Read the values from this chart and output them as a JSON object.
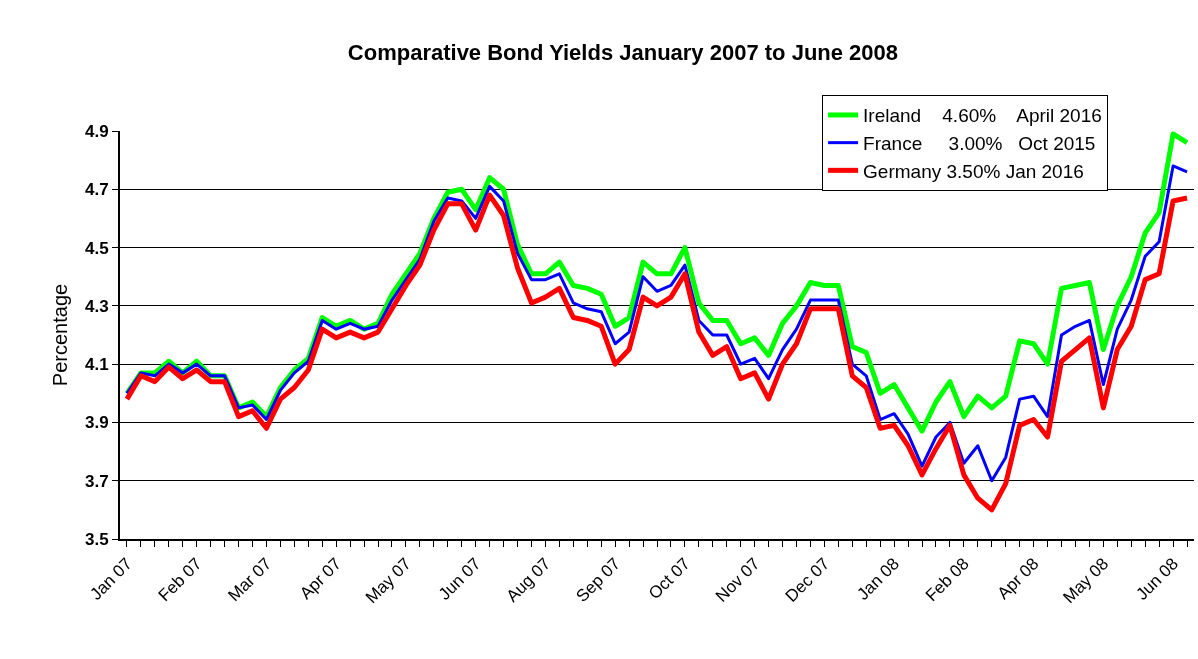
{
  "chart_data": {
    "type": "line",
    "title": "Comparative Bond Yields January 2007 to June 2008",
    "ylabel": "Percentage",
    "categories": [
      "Jan 07",
      null,
      null,
      null,
      null,
      "Feb 07",
      null,
      null,
      null,
      null,
      "Mar 07",
      null,
      null,
      null,
      null,
      "Apr 07",
      null,
      null,
      null,
      null,
      "May 07",
      null,
      null,
      null,
      null,
      "Jun 07",
      null,
      null,
      null,
      null,
      "Aug 07",
      null,
      null,
      null,
      null,
      "Sep 07",
      null,
      null,
      null,
      null,
      "Oct 07",
      null,
      null,
      null,
      null,
      "Nov 07",
      null,
      null,
      null,
      null,
      "Dec 07",
      null,
      null,
      null,
      null,
      "Jan 08",
      null,
      null,
      null,
      null,
      "Feb 08",
      null,
      null,
      null,
      null,
      "Apr 08",
      null,
      null,
      null,
      null,
      "May 08",
      null,
      null,
      null,
      null,
      "Jun 08",
      null
    ],
    "series": [
      {
        "name": "Ireland    4.60%    April 2016",
        "color": "#00ff00",
        "values": [
          4.0,
          4.07,
          4.07,
          4.11,
          4.07,
          4.11,
          4.06,
          4.06,
          3.95,
          3.97,
          3.92,
          4.02,
          4.08,
          4.12,
          4.26,
          4.23,
          4.25,
          4.22,
          4.24,
          4.34,
          4.41,
          4.48,
          4.6,
          4.69,
          4.7,
          4.63,
          4.74,
          4.7,
          4.51,
          4.41,
          4.41,
          4.45,
          4.37,
          4.36,
          4.34,
          4.23,
          4.26,
          4.45,
          4.41,
          4.41,
          4.5,
          4.31,
          4.25,
          4.25,
          4.17,
          4.19,
          4.13,
          4.24,
          4.3,
          4.38,
          4.37,
          4.37,
          4.16,
          4.14,
          4.0,
          4.03,
          3.95,
          3.87,
          3.97,
          4.04,
          3.92,
          3.99,
          3.95,
          3.99,
          4.18,
          4.17,
          4.1,
          4.36,
          4.37,
          4.38,
          4.15,
          4.3,
          4.4,
          4.55,
          4.62,
          4.89,
          4.86
        ]
      },
      {
        "name": "France     3.00%   Oct 2015",
        "color": "#0000ff",
        "values": [
          4.0,
          4.07,
          4.06,
          4.1,
          4.07,
          4.1,
          4.06,
          4.06,
          3.95,
          3.96,
          3.91,
          4.01,
          4.07,
          4.11,
          4.25,
          4.22,
          4.24,
          4.22,
          4.23,
          4.32,
          4.39,
          4.46,
          4.59,
          4.67,
          4.66,
          4.6,
          4.71,
          4.66,
          4.48,
          4.39,
          4.39,
          4.41,
          4.31,
          4.29,
          4.28,
          4.17,
          4.21,
          4.4,
          4.35,
          4.37,
          4.44,
          4.25,
          4.2,
          4.2,
          4.1,
          4.12,
          4.05,
          4.15,
          4.22,
          4.32,
          4.32,
          4.32,
          4.1,
          4.06,
          3.91,
          3.93,
          3.86,
          3.75,
          3.85,
          3.9,
          3.76,
          3.82,
          3.7,
          3.78,
          3.98,
          3.99,
          3.92,
          4.2,
          4.23,
          4.25,
          4.03,
          4.22,
          4.32,
          4.47,
          4.52,
          4.78,
          4.76
        ]
      },
      {
        "name": "Germany 3.50% Jan 2016",
        "color": "#ff0000",
        "values": [
          3.98,
          4.06,
          4.04,
          4.09,
          4.05,
          4.08,
          4.04,
          4.04,
          3.92,
          3.94,
          3.88,
          3.98,
          4.02,
          4.08,
          4.22,
          4.19,
          4.21,
          4.19,
          4.21,
          4.29,
          4.37,
          4.44,
          4.56,
          4.65,
          4.65,
          4.56,
          4.68,
          4.61,
          4.43,
          4.31,
          4.33,
          4.36,
          4.26,
          4.25,
          4.23,
          4.1,
          4.15,
          4.33,
          4.3,
          4.33,
          4.41,
          4.21,
          4.13,
          4.16,
          4.05,
          4.07,
          3.98,
          4.1,
          4.17,
          4.29,
          4.29,
          4.29,
          4.06,
          4.02,
          3.88,
          3.89,
          3.82,
          3.72,
          3.81,
          3.89,
          3.72,
          3.64,
          3.6,
          3.69,
          3.89,
          3.91,
          3.85,
          4.11,
          4.15,
          4.19,
          3.95,
          4.15,
          4.23,
          4.39,
          4.41,
          4.66,
          4.67
        ]
      }
    ],
    "ylim": [
      3.5,
      4.9
    ],
    "yticks": [
      3.5,
      3.7,
      3.9,
      4.1,
      4.3,
      4.5,
      4.7,
      4.9
    ],
    "grid": "y",
    "legend": "top right",
    "marker": "none",
    "line_style": "solid"
  }
}
